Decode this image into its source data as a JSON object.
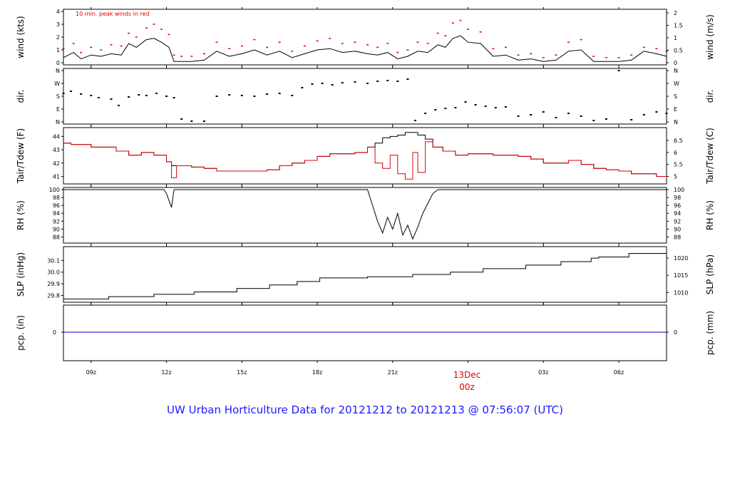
{
  "footer_title": "UW Urban Horticulture Data for 20121212  to  20121213 @ 07:56:07  (UTC)",
  "day_label": {
    "line1": "13Dec",
    "line2": "00z"
  },
  "x_ticks": [
    "09z",
    "12z",
    "15z",
    "18z",
    "21z",
    "03z",
    "06z"
  ],
  "colors": {
    "primary": "#000000",
    "dewpoint": "#e00000",
    "peak": "#e00000",
    "precip": "#0000cc",
    "title": "#1a1aff"
  },
  "chart_data": [
    {
      "type": "line",
      "panel": "wind",
      "ylabel": "wind (kts)",
      "ylabel_right": "wind (m/s)",
      "ylim": [
        0,
        4
      ],
      "yticks": [
        0,
        1,
        2,
        3,
        4
      ],
      "yticks_right": [
        "0",
        "0.5",
        "1",
        "1.5",
        "2"
      ],
      "annotation": "10 min. peak winds in red",
      "x_hours": [
        7.9,
        8.3,
        8.6,
        9.0,
        9.4,
        9.8,
        10.2,
        10.5,
        10.8,
        11.2,
        11.5,
        11.8,
        12.1,
        12.3,
        12.6,
        13.0,
        13.5,
        14.0,
        14.5,
        15.0,
        15.5,
        16.0,
        16.5,
        17.0,
        17.5,
        18.0,
        18.5,
        19.0,
        19.5,
        20.0,
        20.4,
        20.8,
        21.2,
        21.6,
        22.0,
        22.4,
        22.8,
        23.1,
        23.4,
        23.7,
        24.0,
        24.5,
        25.0,
        25.5,
        26.0,
        26.5,
        27.0,
        27.5,
        28.0,
        28.5,
        29.0,
        29.5,
        30.0,
        30.5,
        31.0,
        31.5,
        31.9
      ],
      "series": [
        {
          "name": "wind",
          "values": [
            0.4,
            0.8,
            0.3,
            0.6,
            0.5,
            0.7,
            0.6,
            1.5,
            1.2,
            1.8,
            1.9,
            1.6,
            1.2,
            0.1,
            0.1,
            0.1,
            0.2,
            0.9,
            0.5,
            0.7,
            1.0,
            0.6,
            0.9,
            0.4,
            0.7,
            1.0,
            1.1,
            0.8,
            0.9,
            0.7,
            0.6,
            0.8,
            0.3,
            0.5,
            0.9,
            0.8,
            1.4,
            1.2,
            1.9,
            2.1,
            1.6,
            1.5,
            0.5,
            0.6,
            0.2,
            0.3,
            0.1,
            0.2,
            0.9,
            1.0,
            0.1,
            0.1,
            0.1,
            0.2,
            0.9,
            0.7,
            0.5
          ]
        },
        {
          "name": "peak",
          "values": [
            1.1,
            1.5,
            0.8,
            1.2,
            1.0,
            1.4,
            1.3,
            2.3,
            2.0,
            2.7,
            3.0,
            2.6,
            2.2,
            0.6,
            0.5,
            0.5,
            0.7,
            1.6,
            1.1,
            1.3,
            1.8,
            1.2,
            1.6,
            0.9,
            1.3,
            1.7,
            1.9,
            1.5,
            1.6,
            1.4,
            1.2,
            1.5,
            0.8,
            1.0,
            1.6,
            1.5,
            2.3,
            2.1,
            3.1,
            3.3,
            2.6,
            2.4,
            1.1,
            1.2,
            0.6,
            0.7,
            0.4,
            0.6,
            1.6,
            1.8,
            0.5,
            0.4,
            0.4,
            0.6,
            1.2,
            1.1,
            0.9
          ]
        }
      ]
    },
    {
      "type": "scatter",
      "panel": "dir",
      "ylabel": "dir.",
      "ylabel_right": "dir.",
      "ylim": [
        0,
        360
      ],
      "yticks": [
        "N",
        "E",
        "S",
        "W",
        "N"
      ],
      "x_hours": [
        7.9,
        8.2,
        8.6,
        9.0,
        9.3,
        9.8,
        10.1,
        10.5,
        10.9,
        11.2,
        11.6,
        12.0,
        12.3,
        12.6,
        13.0,
        13.5,
        14.0,
        14.5,
        15.0,
        15.5,
        16.0,
        16.5,
        17.0,
        17.4,
        17.8,
        18.2,
        18.6,
        19.0,
        19.5,
        20.0,
        20.4,
        20.8,
        21.2,
        21.6,
        21.9,
        22.3,
        22.7,
        23.1,
        23.5,
        23.9,
        24.3,
        24.7,
        25.1,
        25.5,
        26.0,
        26.5,
        27.0,
        27.5,
        28.0,
        28.5,
        29.0,
        29.5,
        30.0,
        30.5,
        31.0,
        31.5,
        31.9
      ],
      "series": [
        {
          "name": "dir",
          "values": [
            200,
            215,
            195,
            185,
            170,
            160,
            115,
            175,
            190,
            185,
            200,
            180,
            170,
            20,
            5,
            5,
            180,
            190,
            185,
            180,
            195,
            200,
            185,
            240,
            265,
            270,
            260,
            275,
            280,
            270,
            285,
            290,
            285,
            300,
            10,
            60,
            85,
            95,
            100,
            140,
            120,
            110,
            100,
            105,
            40,
            50,
            70,
            30,
            60,
            40,
            10,
            20,
            360,
            15,
            50,
            70,
            60
          ]
        }
      ]
    },
    {
      "type": "line",
      "panel": "temp",
      "ylabel": "Tair/Tdew (F)",
      "ylabel_right": "Tair/Tdew (C)",
      "ylim": [
        40.6,
        44.5
      ],
      "yticks": [
        41,
        42,
        43,
        44
      ],
      "yticks_right": [
        "5",
        "5.5",
        "6",
        "6.5"
      ],
      "x_hours": [
        7.9,
        8.2,
        9.0,
        9.5,
        10.0,
        10.5,
        11.0,
        11.5,
        12.0,
        12.2,
        12.4,
        13.0,
        13.5,
        14.0,
        14.5,
        15.0,
        15.5,
        16.0,
        16.5,
        17.0,
        17.5,
        18.0,
        18.5,
        19.0,
        19.5,
        20.0,
        20.3,
        20.6,
        20.9,
        21.2,
        21.5,
        21.8,
        22.0,
        22.3,
        22.6,
        23.0,
        23.5,
        24.0,
        24.5,
        25.0,
        25.5,
        26.0,
        26.5,
        27.0,
        27.5,
        28.0,
        28.5,
        29.0,
        29.5,
        30.0,
        30.5,
        31.0,
        31.5,
        31.9
      ],
      "series": [
        {
          "name": "Tair",
          "values": [
            43.5,
            43.4,
            43.2,
            43.2,
            42.9,
            42.6,
            42.8,
            42.6,
            42.1,
            41.8,
            41.8,
            41.7,
            41.6,
            41.4,
            41.4,
            41.4,
            41.4,
            41.5,
            41.8,
            42.0,
            42.2,
            42.5,
            42.7,
            42.7,
            42.8,
            43.2,
            43.5,
            43.9,
            44.0,
            44.1,
            44.3,
            44.3,
            44.1,
            43.8,
            43.2,
            42.9,
            42.6,
            42.7,
            42.7,
            42.6,
            42.6,
            42.5,
            42.3,
            42.0,
            42.0,
            42.2,
            41.9,
            41.6,
            41.5,
            41.4,
            41.2,
            41.2,
            41.0,
            40.9
          ]
        },
        {
          "name": "Tdew",
          "values": [
            43.5,
            43.4,
            43.2,
            43.2,
            42.9,
            42.6,
            42.8,
            42.6,
            42.1,
            40.9,
            41.8,
            41.7,
            41.6,
            41.4,
            41.4,
            41.4,
            41.4,
            41.5,
            41.8,
            42.0,
            42.2,
            42.5,
            42.7,
            42.7,
            42.8,
            43.2,
            42.0,
            41.6,
            42.6,
            41.2,
            40.8,
            42.8,
            41.3,
            43.6,
            43.2,
            42.9,
            42.6,
            42.7,
            42.7,
            42.6,
            42.6,
            42.5,
            42.3,
            42.0,
            42.0,
            42.2,
            41.9,
            41.6,
            41.5,
            41.4,
            41.2,
            41.2,
            41.0,
            40.9
          ]
        }
      ]
    },
    {
      "type": "line",
      "panel": "rh",
      "ylabel": "RH (%)",
      "ylabel_right": "RH (%)",
      "ylim": [
        87,
        100
      ],
      "yticks": [
        88,
        90,
        92,
        94,
        96,
        98,
        100
      ],
      "x_hours": [
        7.9,
        11.9,
        12.0,
        12.2,
        12.3,
        12.5,
        20.0,
        20.2,
        20.4,
        20.6,
        20.8,
        21.0,
        21.2,
        21.4,
        21.6,
        21.8,
        22.0,
        22.2,
        22.4,
        22.6,
        22.8,
        31.9
      ],
      "series": [
        {
          "name": "RH",
          "values": [
            100,
            100,
            99.0,
            95.5,
            100,
            100,
            100,
            96.0,
            92.0,
            89.0,
            93.0,
            90.0,
            94.0,
            88.5,
            91.0,
            87.5,
            90.5,
            94.0,
            96.5,
            99.0,
            100,
            100
          ]
        }
      ]
    },
    {
      "type": "line",
      "panel": "slp",
      "ylabel": "SLP (inHg)",
      "ylabel_right": "SLP (hPa)",
      "ylim": [
        29.76,
        30.2
      ],
      "yticks": [
        "29.8",
        "29.9",
        "30.0",
        "30.1"
      ],
      "yticks_right": [
        "1010",
        "1015",
        "1020"
      ],
      "x_hours": [
        7.9,
        9.7,
        11.5,
        13.1,
        14.8,
        16.1,
        17.2,
        18.1,
        20.0,
        21.8,
        23.3,
        24.6,
        26.3,
        27.7,
        28.9,
        29.2,
        30.4,
        31.9
      ],
      "series": [
        {
          "name": "SLP",
          "values": [
            29.77,
            29.79,
            29.81,
            29.83,
            29.86,
            29.89,
            29.92,
            29.95,
            29.96,
            29.98,
            30.0,
            30.03,
            30.06,
            30.09,
            30.12,
            30.13,
            30.16,
            30.16
          ]
        }
      ]
    },
    {
      "type": "line",
      "panel": "pcp",
      "ylabel": "pcp. (in)",
      "ylabel_right": "pcp. (mm)",
      "yticks": [
        "0"
      ],
      "yticks_right": [
        "0"
      ],
      "x_hours": [
        7.9,
        31.9
      ],
      "series": [
        {
          "name": "pcp",
          "values": [
            0,
            0
          ]
        }
      ]
    }
  ]
}
